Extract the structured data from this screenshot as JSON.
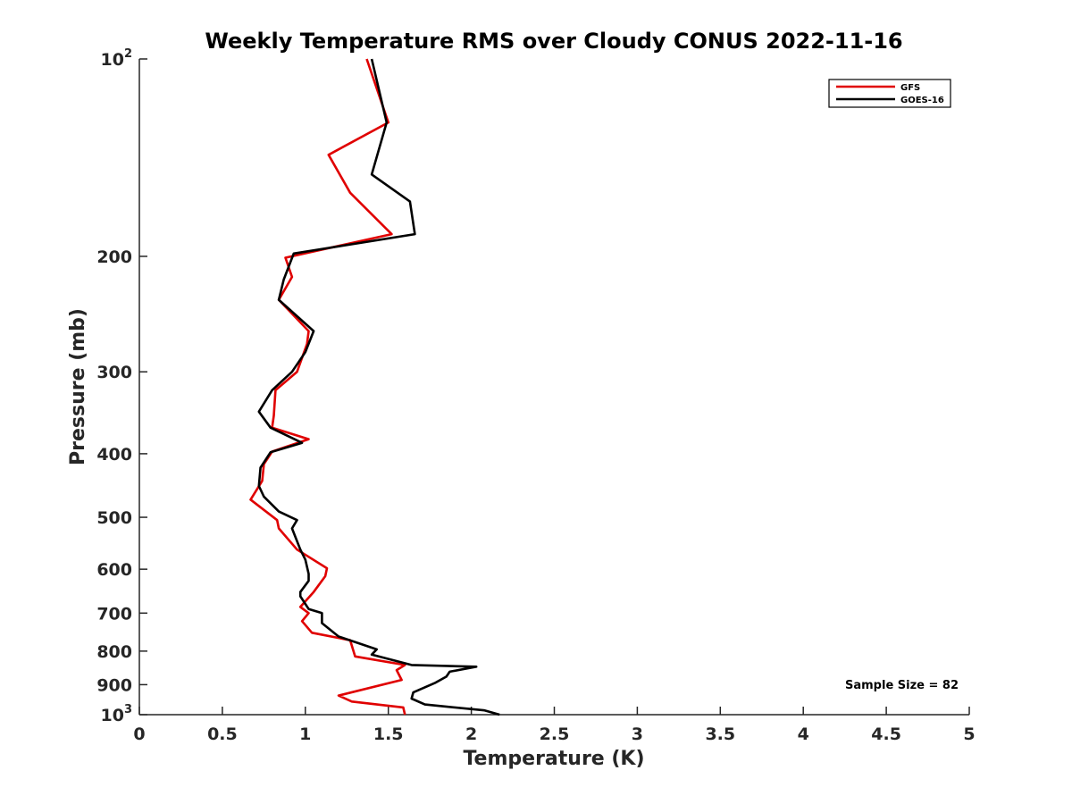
{
  "chart_data": {
    "type": "line",
    "title": "Weekly Temperature RMS over Cloudy CONUS 2022-11-16",
    "xlabel": "Temperature (K)",
    "ylabel": "Pressure (mb)",
    "xlim": [
      0,
      5
    ],
    "ylim": [
      100,
      1000
    ],
    "y_scale": "log",
    "y_reversed": true,
    "x_ticks": [
      0,
      0.5,
      1,
      1.5,
      2,
      2.5,
      3,
      3.5,
      4,
      4.5,
      5
    ],
    "x_tick_labels": [
      "0",
      "0.5",
      "1",
      "1.5",
      "2",
      "2.5",
      "3",
      "3.5",
      "4",
      "4.5",
      "5"
    ],
    "y_ticks": [
      {
        "value": 100,
        "base": "10",
        "exp": "2"
      },
      {
        "value": 200,
        "label": "200"
      },
      {
        "value": 300,
        "label": "300"
      },
      {
        "value": 400,
        "label": "400"
      },
      {
        "value": 500,
        "label": "500"
      },
      {
        "value": 600,
        "label": "600"
      },
      {
        "value": 700,
        "label": "700"
      },
      {
        "value": 800,
        "label": "800"
      },
      {
        "value": 900,
        "label": "900"
      },
      {
        "value": 1000,
        "base": "10",
        "exp": "3"
      }
    ],
    "grid": false,
    "legend_position": "top-right",
    "annotation": "Sample Size = 82",
    "series": [
      {
        "name": "GFS",
        "color": "#e00000",
        "points": [
          [
            1.37,
            100
          ],
          [
            1.5,
            125
          ],
          [
            1.14,
            140
          ],
          [
            1.27,
            160
          ],
          [
            1.52,
            185
          ],
          [
            0.88,
            201
          ],
          [
            0.92,
            215
          ],
          [
            0.84,
            233
          ],
          [
            1.02,
            260
          ],
          [
            1.01,
            272
          ],
          [
            0.95,
            300
          ],
          [
            0.82,
            320
          ],
          [
            0.81,
            350
          ],
          [
            0.8,
            365
          ],
          [
            1.02,
            380
          ],
          [
            0.8,
            397
          ],
          [
            0.75,
            415
          ],
          [
            0.74,
            440
          ],
          [
            0.67,
            470
          ],
          [
            0.83,
            505
          ],
          [
            0.84,
            520
          ],
          [
            0.95,
            560
          ],
          [
            1.13,
            598
          ],
          [
            1.12,
            615
          ],
          [
            1.05,
            650
          ],
          [
            0.97,
            685
          ],
          [
            1.02,
            700
          ],
          [
            0.98,
            720
          ],
          [
            1.04,
            750
          ],
          [
            1.27,
            770
          ],
          [
            1.3,
            815
          ],
          [
            1.6,
            840
          ],
          [
            1.55,
            855
          ],
          [
            1.58,
            885
          ],
          [
            1.2,
            935
          ],
          [
            1.28,
            955
          ],
          [
            1.59,
            975
          ],
          [
            1.6,
            1000
          ]
        ]
      },
      {
        "name": "GOES-16",
        "color": "#000000",
        "points": [
          [
            1.4,
            100
          ],
          [
            1.49,
            125
          ],
          [
            1.4,
            150
          ],
          [
            1.63,
            165
          ],
          [
            1.66,
            185
          ],
          [
            0.93,
            198
          ],
          [
            0.87,
            217
          ],
          [
            0.84,
            233
          ],
          [
            1.05,
            260
          ],
          [
            1.0,
            280
          ],
          [
            0.92,
            300
          ],
          [
            0.8,
            320
          ],
          [
            0.72,
            345
          ],
          [
            0.79,
            365
          ],
          [
            0.98,
            385
          ],
          [
            0.79,
            398
          ],
          [
            0.73,
            420
          ],
          [
            0.72,
            448
          ],
          [
            0.75,
            465
          ],
          [
            0.84,
            490
          ],
          [
            0.95,
            505
          ],
          [
            0.92,
            520
          ],
          [
            0.97,
            560
          ],
          [
            1.0,
            580
          ],
          [
            1.02,
            610
          ],
          [
            1.02,
            625
          ],
          [
            0.97,
            650
          ],
          [
            0.97,
            660
          ],
          [
            1.02,
            690
          ],
          [
            1.1,
            700
          ],
          [
            1.1,
            725
          ],
          [
            1.2,
            760
          ],
          [
            1.43,
            795
          ],
          [
            1.4,
            810
          ],
          [
            1.64,
            840
          ],
          [
            2.03,
            845
          ],
          [
            1.87,
            860
          ],
          [
            1.85,
            875
          ],
          [
            1.78,
            895
          ],
          [
            1.65,
            925
          ],
          [
            1.64,
            945
          ],
          [
            1.72,
            965
          ],
          [
            2.08,
            985
          ],
          [
            2.17,
            1000
          ]
        ]
      }
    ]
  }
}
